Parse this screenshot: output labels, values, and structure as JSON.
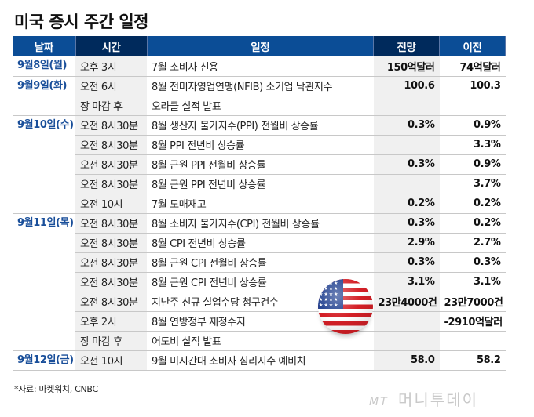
{
  "title": "미국 증시 주간 일정",
  "table": {
    "headers": {
      "date": "날짜",
      "time": "시간",
      "event": "일정",
      "forecast": "전망",
      "previous": "이전"
    },
    "rows": [
      {
        "date": "9월8일(월)",
        "time": "오후 3시",
        "event": "7월 소비자 신용",
        "forecast": "150억달러",
        "previous": "74억달러"
      },
      {
        "date": "9월9일(화)",
        "time": "오전 6시",
        "event": "8월 전미자영업연맹(NFIB) 소기업 낙관지수",
        "forecast": "100.6",
        "previous": "100.3"
      },
      {
        "date": "",
        "time": "장 마감 후",
        "event": "오라클 실적 발표",
        "forecast": "",
        "previous": ""
      },
      {
        "date": "9월10일(수)",
        "time": "오전 8시30분",
        "event": "8월 생산자 물가지수(PPI) 전월비 상승률",
        "forecast": "0.3%",
        "previous": "0.9%"
      },
      {
        "date": "",
        "time": "오전 8시30분",
        "event": "8월 PPI 전년비 상승률",
        "forecast": "",
        "previous": "3.3%"
      },
      {
        "date": "",
        "time": "오전 8시30분",
        "event": "8월 근원 PPI 전월비 상승률",
        "forecast": "0.3%",
        "previous": "0.9%"
      },
      {
        "date": "",
        "time": "오전 8시30분",
        "event": "8월 근원 PPI 전년비 상승률",
        "forecast": "",
        "previous": "3.7%"
      },
      {
        "date": "",
        "time": "오전 10시",
        "event": "7월 도매재고",
        "forecast": "0.2%",
        "previous": "0.2%"
      },
      {
        "date": "9월11일(목)",
        "time": "오전 8시30분",
        "event": "8월 소비자 물가지수(CPI) 전월비 상승률",
        "forecast": "0.3%",
        "previous": "0.2%"
      },
      {
        "date": "",
        "time": "오전 8시30분",
        "event": "8월 CPI 전년비 상승률",
        "forecast": "2.9%",
        "previous": "2.7%"
      },
      {
        "date": "",
        "time": "오전 8시30분",
        "event": "8월 근원 CPI 전월비 상승률",
        "forecast": "0.3%",
        "previous": "0.3%"
      },
      {
        "date": "",
        "time": "오전 8시30분",
        "event": "8월 근원 CPI 전년비 상승률",
        "forecast": "3.1%",
        "previous": "3.1%"
      },
      {
        "date": "",
        "time": "오전 8시30분",
        "event": "지난주 신규 실업수당 청구건수",
        "forecast": "23만4000건",
        "previous": "23만7000건"
      },
      {
        "date": "",
        "time": "오후 2시",
        "event": "8월 연방정부 재정수지",
        "forecast": "",
        "previous": "-2910억달러"
      },
      {
        "date": "",
        "time": "장 마감 후",
        "event": "어도비 실적 발표",
        "forecast": "",
        "previous": ""
      },
      {
        "date": "9월12일(금)",
        "time": "오전 10시",
        "event": "9월 미시간대 소비자 심리지수 예비치",
        "forecast": "58.0",
        "previous": "58.2"
      }
    ]
  },
  "source": "*자료: 마켓워치, CNBC",
  "logo": {
    "mark": "MT",
    "name": "머니투데이"
  },
  "decoration": {
    "flag_icon": "us-flag-icon"
  },
  "colors": {
    "header_blue": "#0b4d96",
    "header_navy": "#002a5c",
    "date_text": "#1a4f9a",
    "shaded_column": "#f0f0f0"
  }
}
